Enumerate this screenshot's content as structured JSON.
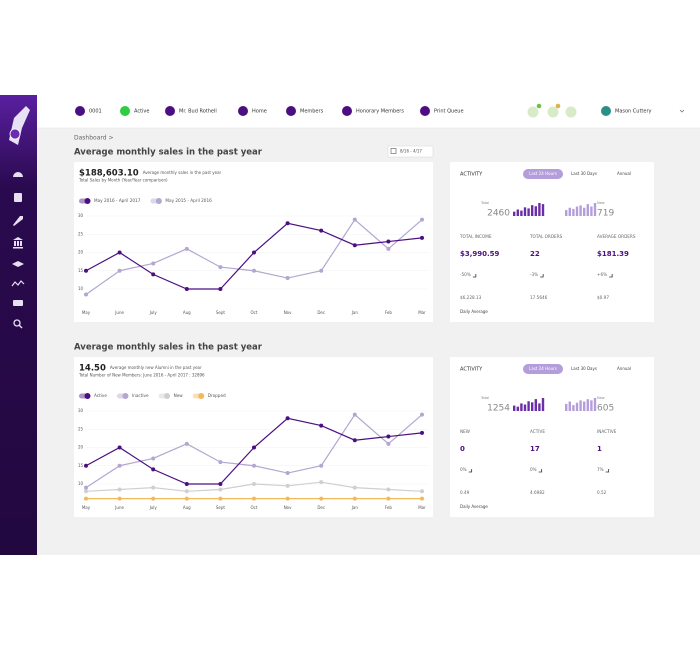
{
  "nav": {
    "items": [
      "0001",
      "Active",
      "Mr. Bud Rothell",
      "Home",
      "Members",
      "Honorary Members",
      "Print Queue"
    ],
    "user": "Mason Cuttery"
  },
  "breadcrumb": "Dashboard >",
  "chart_data": [
    {
      "type": "line",
      "title": "Average monthly sales in the past year",
      "date_range": "8/16 - 4/17",
      "headline": "$188,603.10",
      "headline_note": "Average monthly sales in the past year",
      "subtitle": "Total Sales by Month (Year/Year comparison)",
      "categories": [
        "May",
        "June",
        "July",
        "Aug",
        "Sept",
        "Oct",
        "Nov",
        "Dec",
        "Jan",
        "Feb",
        "Mar"
      ],
      "series": [
        {
          "name": "May 2016 - April 2017",
          "color": "#4b0f82",
          "values": [
            15,
            20,
            14,
            10,
            10,
            20,
            28,
            26,
            22,
            23,
            24
          ]
        },
        {
          "name": "May 2015 - April 2016",
          "color": "#b3a6d0",
          "values": [
            8.5,
            15,
            17,
            21,
            16,
            15,
            13,
            15,
            29,
            21,
            29
          ]
        }
      ],
      "ylim": [
        5,
        31
      ],
      "yticks": [
        10,
        15,
        20,
        25,
        30
      ],
      "grid": true
    },
    {
      "type": "line",
      "title": "Average monthly sales in the past year",
      "headline": "14.50",
      "headline_note": "Average monthly new Alumni in the past year",
      "subtitle": "Total Number of New Members: June 2016 - April 2017 : 32896",
      "categories": [
        "May",
        "June",
        "July",
        "Aug",
        "Sept",
        "Oct",
        "Nov",
        "Dec",
        "Jan",
        "Feb",
        "Mar"
      ],
      "series": [
        {
          "name": "Active",
          "color": "#4b0f82",
          "values": [
            15,
            20,
            14,
            10,
            10,
            20,
            28,
            26,
            22,
            23,
            24
          ]
        },
        {
          "name": "Inactive",
          "color": "#b3a6d0",
          "values": [
            9,
            15,
            17,
            21,
            16,
            15,
            13,
            15,
            29,
            21,
            29
          ]
        },
        {
          "name": "New",
          "color": "#cfcfcf",
          "values": [
            8,
            8.5,
            9,
            8,
            8.5,
            10,
            9.5,
            10.5,
            9,
            8.5,
            8
          ]
        },
        {
          "name": "Dropped",
          "color": "#f2b95a",
          "values": [
            6,
            6,
            6,
            6,
            6,
            6,
            6,
            6,
            6,
            6,
            6
          ]
        }
      ],
      "ylim": [
        5,
        31
      ],
      "yticks": [
        10,
        15,
        20,
        25,
        30
      ],
      "grid": true
    }
  ],
  "activity": [
    {
      "title": "ACTIVITY",
      "tabs": [
        "Last 24 Hours",
        "Last 30 Days",
        "Annual"
      ],
      "total_label": "Total",
      "total": 2460,
      "total_bars": [
        4,
        6,
        5,
        8,
        7,
        10,
        9,
        12,
        11
      ],
      "new_label": "New",
      "new": 719,
      "new_bars": [
        5,
        7,
        6,
        8,
        9,
        7,
        10,
        8,
        11
      ],
      "stats": [
        {
          "label": "TOTAL INCOME",
          "value": "$3,990.59",
          "change": "-50%",
          "average": "$6,228.13"
        },
        {
          "label": "TOTAL ORDERS",
          "value": "22",
          "change": "-3%",
          "average": "17.5646"
        },
        {
          "label": "AVERAGE ORDERS",
          "value": "$181.39",
          "change": "+6%",
          "average": "$0.97"
        }
      ],
      "footer": "Daily Average"
    },
    {
      "title": "ACTIVITY",
      "tabs": [
        "Last 24 Hours",
        "Last 30 Days",
        "Annual"
      ],
      "total_label": "Total",
      "total": 1254,
      "total_bars": [
        5,
        4,
        7,
        6,
        9,
        8,
        11,
        7,
        12
      ],
      "new_label": "New",
      "new": 605,
      "new_bars": [
        6,
        8,
        5,
        7,
        9,
        8,
        10,
        9,
        11
      ],
      "stats": [
        {
          "label": "NEW",
          "value": "0",
          "change": "0%",
          "average": "0.49"
        },
        {
          "label": "ACTIVE",
          "value": "17",
          "change": "0%",
          "average": "4.6982"
        },
        {
          "label": "INACTIVE",
          "value": "1",
          "change": "7%",
          "average": "0.52"
        }
      ],
      "footer": "Daily Average"
    }
  ]
}
